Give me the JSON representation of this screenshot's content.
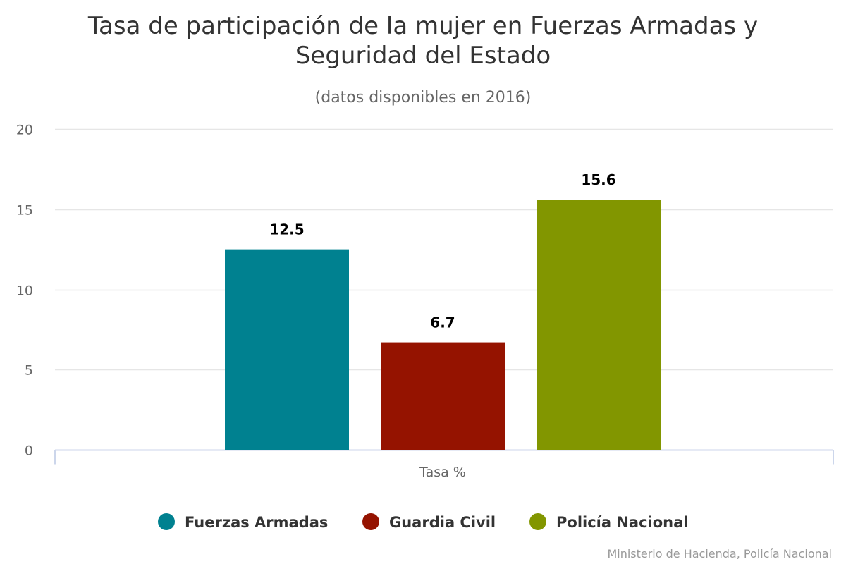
{
  "chart_data": {
    "type": "bar",
    "title": "Tasa de participación de la mujer en Fuerzas Armadas y Seguridad del Estado",
    "title_lines": [
      "Tasa de participación de la mujer en Fuerzas Armadas y",
      "Seguridad del Estado"
    ],
    "subtitle": "(datos disponibles en 2016)",
    "categories": [
      "Tasa %"
    ],
    "series": [
      {
        "name": "Fuerzas Armadas",
        "values": [
          12.5
        ],
        "color": "#008190"
      },
      {
        "name": "Guardia Civil",
        "values": [
          6.7
        ],
        "color": "#951300"
      },
      {
        "name": "Policía Nacional",
        "values": [
          15.6
        ],
        "color": "#829600"
      }
    ],
    "ylim": [
      0,
      20
    ],
    "yticks": [
      "0",
      "5",
      "10",
      "15",
      "20"
    ],
    "grid": true,
    "legend": "bottom-center",
    "data_labels": true,
    "credits": "Ministerio de Hacienda, Policía Nacional"
  }
}
